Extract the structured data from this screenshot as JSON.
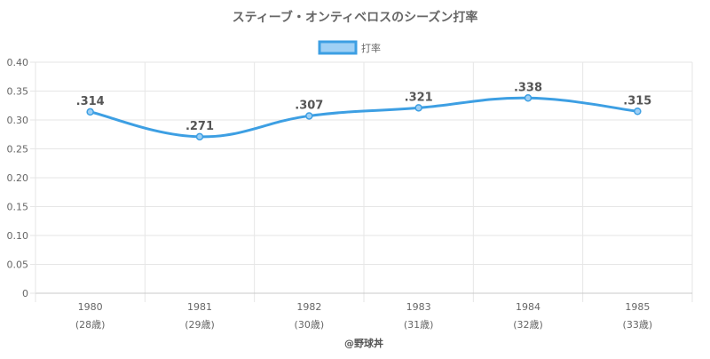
{
  "chart_data": {
    "type": "line",
    "title": "スティーブ・オンティベロスのシーズン打率",
    "categories": [
      "1980",
      "1981",
      "1982",
      "1983",
      "1984",
      "1985"
    ],
    "sublabels": [
      "(28歳)",
      "(29歳)",
      "(30歳)",
      "(31歳)",
      "(32歳)",
      "(33歳)"
    ],
    "series": [
      {
        "name": "打率",
        "values": [
          0.314,
          0.271,
          0.307,
          0.321,
          0.338,
          0.315
        ],
        "labels": [
          ".314",
          ".271",
          ".307",
          ".321",
          ".338",
          ".315"
        ],
        "color": "#3d9fe3",
        "fill": "#9fd0f5"
      }
    ],
    "ylim": [
      0,
      0.4
    ],
    "yticks": [
      0,
      0.05,
      0.1,
      0.15,
      0.2,
      0.25,
      0.3,
      0.35,
      0.4
    ],
    "ytick_labels": [
      "0",
      "0.05",
      "0.10",
      "0.15",
      "0.20",
      "0.25",
      "0.30",
      "0.35",
      "0.40"
    ],
    "grid": true,
    "legend_position": "top-center",
    "credit": "@野球丼",
    "colors": {
      "grid": "#e6e6e6",
      "axis": "#c8c8c8",
      "tick_text": "#666666",
      "title_text": "#666666",
      "label_text": "#555555"
    }
  }
}
